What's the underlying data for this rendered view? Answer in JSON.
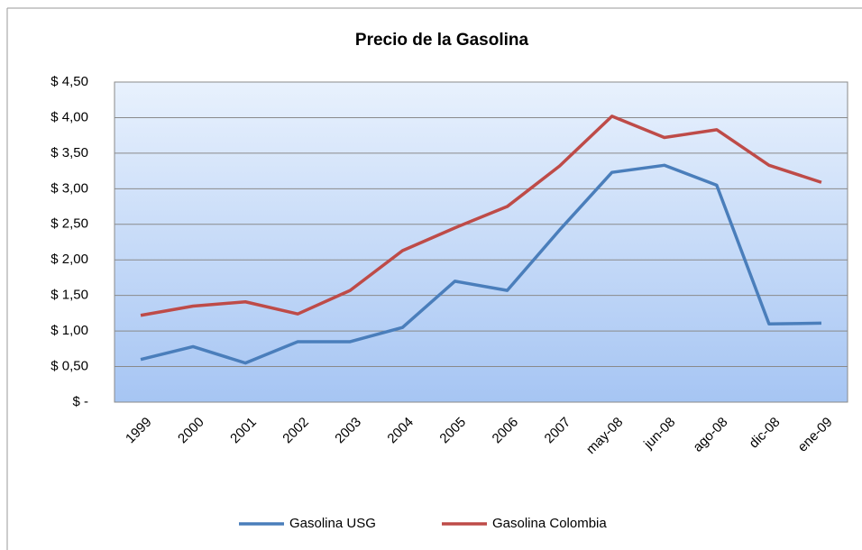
{
  "chart_data": {
    "type": "line",
    "title": "Precio de la Gasolina",
    "categories": [
      "1999",
      "2000",
      "2001",
      "2002",
      "2003",
      "2004",
      "2005",
      "2006",
      "2007",
      "may-08",
      "jun-08",
      "ago-08",
      "dic-08",
      "ene-09"
    ],
    "series": [
      {
        "name": "Gasolina USG",
        "color": "#4a7ebb",
        "values": [
          0.6,
          0.78,
          0.55,
          0.85,
          0.85,
          1.05,
          1.7,
          1.57,
          2.42,
          3.23,
          3.33,
          3.05,
          1.1,
          1.11
        ]
      },
      {
        "name": "Gasolina Colombia",
        "color": "#be4b48",
        "values": [
          1.22,
          1.35,
          1.41,
          1.24,
          1.57,
          2.13,
          2.45,
          2.75,
          3.32,
          4.02,
          3.72,
          3.83,
          3.33,
          3.09
        ]
      }
    ],
    "ylim": [
      0,
      4.5
    ],
    "yticks": [
      {
        "value": 0,
        "label": "$ -"
      },
      {
        "value": 0.5,
        "label": "$ 0,50"
      },
      {
        "value": 1,
        "label": "$ 1,00"
      },
      {
        "value": 1.5,
        "label": "$ 1,50"
      },
      {
        "value": 2,
        "label": "$ 2,00"
      },
      {
        "value": 2.5,
        "label": "$ 2,50"
      },
      {
        "value": 3,
        "label": "$ 3,00"
      },
      {
        "value": 3.5,
        "label": "$ 3,50"
      },
      {
        "value": 4,
        "label": "$ 4,00"
      },
      {
        "value": 4.5,
        "label": "$ 4,50"
      }
    ],
    "grid": true,
    "legend": "bottom"
  }
}
